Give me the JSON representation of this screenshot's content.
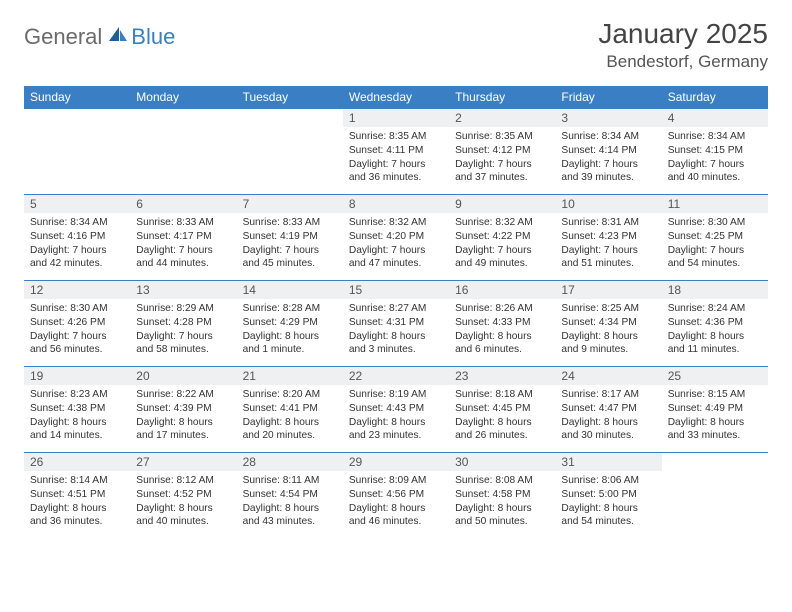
{
  "logo": {
    "general": "General",
    "blue": "Blue"
  },
  "title": "January 2025",
  "location": "Bendestorf, Germany",
  "colors": {
    "header_bg": "#3a7fc4",
    "header_text": "#ffffff",
    "daynum_bg": "#eef0f2",
    "border": "#3a7fc4",
    "body_text": "#333333"
  },
  "weekdays": [
    "Sunday",
    "Monday",
    "Tuesday",
    "Wednesday",
    "Thursday",
    "Friday",
    "Saturday"
  ],
  "weeks": [
    [
      {
        "n": "",
        "sr": "",
        "ss": "",
        "dl": ""
      },
      {
        "n": "",
        "sr": "",
        "ss": "",
        "dl": ""
      },
      {
        "n": "",
        "sr": "",
        "ss": "",
        "dl": ""
      },
      {
        "n": "1",
        "sr": "Sunrise: 8:35 AM",
        "ss": "Sunset: 4:11 PM",
        "dl": "Daylight: 7 hours and 36 minutes."
      },
      {
        "n": "2",
        "sr": "Sunrise: 8:35 AM",
        "ss": "Sunset: 4:12 PM",
        "dl": "Daylight: 7 hours and 37 minutes."
      },
      {
        "n": "3",
        "sr": "Sunrise: 8:34 AM",
        "ss": "Sunset: 4:14 PM",
        "dl": "Daylight: 7 hours and 39 minutes."
      },
      {
        "n": "4",
        "sr": "Sunrise: 8:34 AM",
        "ss": "Sunset: 4:15 PM",
        "dl": "Daylight: 7 hours and 40 minutes."
      }
    ],
    [
      {
        "n": "5",
        "sr": "Sunrise: 8:34 AM",
        "ss": "Sunset: 4:16 PM",
        "dl": "Daylight: 7 hours and 42 minutes."
      },
      {
        "n": "6",
        "sr": "Sunrise: 8:33 AM",
        "ss": "Sunset: 4:17 PM",
        "dl": "Daylight: 7 hours and 44 minutes."
      },
      {
        "n": "7",
        "sr": "Sunrise: 8:33 AM",
        "ss": "Sunset: 4:19 PM",
        "dl": "Daylight: 7 hours and 45 minutes."
      },
      {
        "n": "8",
        "sr": "Sunrise: 8:32 AM",
        "ss": "Sunset: 4:20 PM",
        "dl": "Daylight: 7 hours and 47 minutes."
      },
      {
        "n": "9",
        "sr": "Sunrise: 8:32 AM",
        "ss": "Sunset: 4:22 PM",
        "dl": "Daylight: 7 hours and 49 minutes."
      },
      {
        "n": "10",
        "sr": "Sunrise: 8:31 AM",
        "ss": "Sunset: 4:23 PM",
        "dl": "Daylight: 7 hours and 51 minutes."
      },
      {
        "n": "11",
        "sr": "Sunrise: 8:30 AM",
        "ss": "Sunset: 4:25 PM",
        "dl": "Daylight: 7 hours and 54 minutes."
      }
    ],
    [
      {
        "n": "12",
        "sr": "Sunrise: 8:30 AM",
        "ss": "Sunset: 4:26 PM",
        "dl": "Daylight: 7 hours and 56 minutes."
      },
      {
        "n": "13",
        "sr": "Sunrise: 8:29 AM",
        "ss": "Sunset: 4:28 PM",
        "dl": "Daylight: 7 hours and 58 minutes."
      },
      {
        "n": "14",
        "sr": "Sunrise: 8:28 AM",
        "ss": "Sunset: 4:29 PM",
        "dl": "Daylight: 8 hours and 1 minute."
      },
      {
        "n": "15",
        "sr": "Sunrise: 8:27 AM",
        "ss": "Sunset: 4:31 PM",
        "dl": "Daylight: 8 hours and 3 minutes."
      },
      {
        "n": "16",
        "sr": "Sunrise: 8:26 AM",
        "ss": "Sunset: 4:33 PM",
        "dl": "Daylight: 8 hours and 6 minutes."
      },
      {
        "n": "17",
        "sr": "Sunrise: 8:25 AM",
        "ss": "Sunset: 4:34 PM",
        "dl": "Daylight: 8 hours and 9 minutes."
      },
      {
        "n": "18",
        "sr": "Sunrise: 8:24 AM",
        "ss": "Sunset: 4:36 PM",
        "dl": "Daylight: 8 hours and 11 minutes."
      }
    ],
    [
      {
        "n": "19",
        "sr": "Sunrise: 8:23 AM",
        "ss": "Sunset: 4:38 PM",
        "dl": "Daylight: 8 hours and 14 minutes."
      },
      {
        "n": "20",
        "sr": "Sunrise: 8:22 AM",
        "ss": "Sunset: 4:39 PM",
        "dl": "Daylight: 8 hours and 17 minutes."
      },
      {
        "n": "21",
        "sr": "Sunrise: 8:20 AM",
        "ss": "Sunset: 4:41 PM",
        "dl": "Daylight: 8 hours and 20 minutes."
      },
      {
        "n": "22",
        "sr": "Sunrise: 8:19 AM",
        "ss": "Sunset: 4:43 PM",
        "dl": "Daylight: 8 hours and 23 minutes."
      },
      {
        "n": "23",
        "sr": "Sunrise: 8:18 AM",
        "ss": "Sunset: 4:45 PM",
        "dl": "Daylight: 8 hours and 26 minutes."
      },
      {
        "n": "24",
        "sr": "Sunrise: 8:17 AM",
        "ss": "Sunset: 4:47 PM",
        "dl": "Daylight: 8 hours and 30 minutes."
      },
      {
        "n": "25",
        "sr": "Sunrise: 8:15 AM",
        "ss": "Sunset: 4:49 PM",
        "dl": "Daylight: 8 hours and 33 minutes."
      }
    ],
    [
      {
        "n": "26",
        "sr": "Sunrise: 8:14 AM",
        "ss": "Sunset: 4:51 PM",
        "dl": "Daylight: 8 hours and 36 minutes."
      },
      {
        "n": "27",
        "sr": "Sunrise: 8:12 AM",
        "ss": "Sunset: 4:52 PM",
        "dl": "Daylight: 8 hours and 40 minutes."
      },
      {
        "n": "28",
        "sr": "Sunrise: 8:11 AM",
        "ss": "Sunset: 4:54 PM",
        "dl": "Daylight: 8 hours and 43 minutes."
      },
      {
        "n": "29",
        "sr": "Sunrise: 8:09 AM",
        "ss": "Sunset: 4:56 PM",
        "dl": "Daylight: 8 hours and 46 minutes."
      },
      {
        "n": "30",
        "sr": "Sunrise: 8:08 AM",
        "ss": "Sunset: 4:58 PM",
        "dl": "Daylight: 8 hours and 50 minutes."
      },
      {
        "n": "31",
        "sr": "Sunrise: 8:06 AM",
        "ss": "Sunset: 5:00 PM",
        "dl": "Daylight: 8 hours and 54 minutes."
      },
      {
        "n": "",
        "sr": "",
        "ss": "",
        "dl": ""
      }
    ]
  ]
}
